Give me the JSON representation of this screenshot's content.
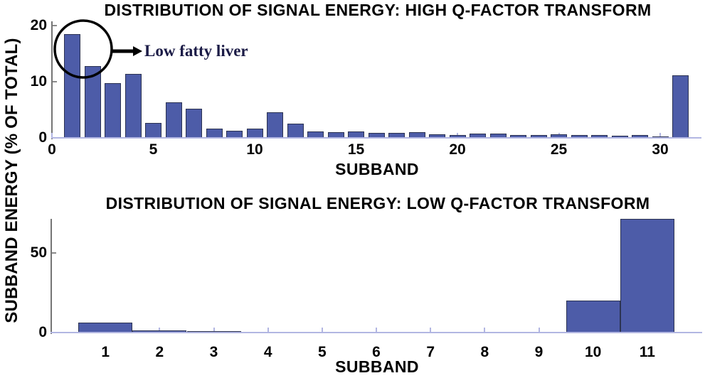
{
  "figure": {
    "shared_ylabel": "SUBBAND ENERGY (% OF TOTAL)"
  },
  "colors": {
    "bar_fill": "#4d5ca8",
    "bar_edge": "#2c3352",
    "x_axis": "#b2b6e2",
    "y_axis": "#757575",
    "y_tickmark": "#8a8a8a",
    "text": "#000000",
    "annotation_text": "#1b1b46",
    "annotation_shape": "#000000"
  },
  "chart_data": [
    {
      "type": "bar",
      "title": "DISTRIBUTION OF SIGNAL ENERGY: HIGH Q-FACTOR TRANSFORM",
      "xlabel": "SUBBAND",
      "ylabel": "SUBBAND ENERGY (% OF TOTAL)",
      "categories": [
        1,
        2,
        3,
        4,
        5,
        6,
        7,
        8,
        9,
        10,
        11,
        12,
        13,
        14,
        15,
        16,
        17,
        18,
        19,
        20,
        21,
        22,
        23,
        24,
        25,
        26,
        27,
        28,
        29,
        30,
        31
      ],
      "values": [
        18.6,
        12.9,
        9.85,
        11.5,
        2.7,
        6.3,
        5.2,
        1.7,
        1.3,
        1.6,
        4.6,
        2.55,
        1.1,
        1.0,
        1.1,
        0.85,
        0.85,
        1.0,
        0.6,
        0.55,
        0.75,
        0.75,
        0.55,
        0.55,
        0.6,
        0.5,
        0.55,
        0.4,
        0.45,
        0.3,
        11.2
      ],
      "xticks": [
        0,
        5,
        10,
        15,
        20,
        25,
        30
      ],
      "yticks": [
        0,
        10,
        20
      ],
      "xlim": [
        0,
        32
      ],
      "ylim": [
        0,
        20.8
      ],
      "bar_width_ratio": 0.82,
      "grid": "off",
      "annotation": {
        "text": "Low fatty liver",
        "target": "first two subbands circled"
      }
    },
    {
      "type": "bar",
      "title": "DISTRIBUTION OF SIGNAL ENERGY: LOW Q-FACTOR TRANSFORM",
      "xlabel": "SUBBAND",
      "ylabel": "SUBBAND ENERGY (% OF TOTAL)",
      "categories": [
        1,
        2,
        3,
        4,
        5,
        6,
        7,
        8,
        9,
        10,
        11
      ],
      "values": [
        6.3,
        1.4,
        1.0,
        0.5,
        0,
        0,
        0,
        0,
        0,
        20.2,
        71.5
      ],
      "xticks": [
        1,
        2,
        3,
        4,
        5,
        6,
        7,
        8,
        9,
        10,
        11
      ],
      "yticks": [
        0,
        50
      ],
      "xlim": [
        0,
        12
      ],
      "ylim": [
        0,
        71.5
      ],
      "bar_width_ratio": 1.0,
      "grid": "off"
    }
  ]
}
